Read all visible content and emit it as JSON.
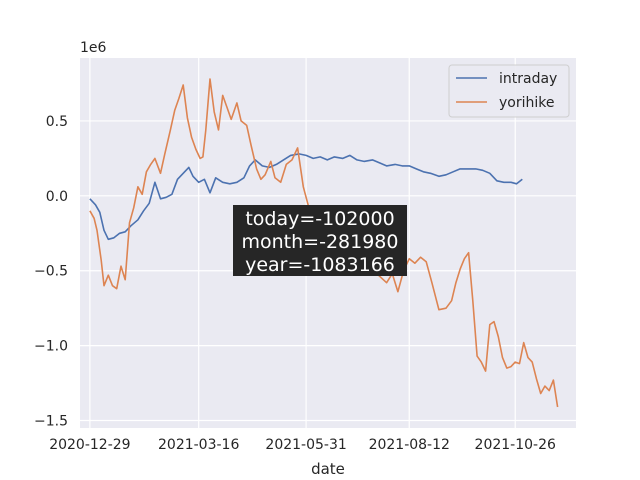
{
  "chart_data": {
    "type": "line",
    "xlabel": "date",
    "ylabel": "",
    "y_scale_label": "1e6",
    "xlim": [
      "2020-12-22",
      "2021-12-08"
    ],
    "ylim": [
      -1550000,
      920000
    ],
    "x_ticks": [
      "2020-12-29",
      "2021-03-16",
      "2021-05-31",
      "2021-08-12",
      "2021-10-26"
    ],
    "y_ticks": [
      {
        "value": 500000,
        "label": "0.5"
      },
      {
        "value": 0,
        "label": "0.0"
      },
      {
        "value": -500000,
        "label": "−0.5"
      },
      {
        "value": -1000000,
        "label": "−1.0"
      },
      {
        "value": -1500000,
        "label": "−1.5"
      }
    ],
    "grid": true,
    "legend_position": "top-right",
    "annotation": [
      "today=-102000",
      "month=-281980",
      "year=-1083166"
    ],
    "series": [
      {
        "name": "intraday",
        "color": "#4c72b0",
        "points": [
          [
            "2020-12-29",
            -20000
          ],
          [
            "2021-01-02",
            -60000
          ],
          [
            "2021-01-05",
            -110000
          ],
          [
            "2021-01-08",
            -230000
          ],
          [
            "2021-01-11",
            -290000
          ],
          [
            "2021-01-15",
            -280000
          ],
          [
            "2021-01-19",
            -250000
          ],
          [
            "2021-01-23",
            -240000
          ],
          [
            "2021-01-27",
            -200000
          ],
          [
            "2021-02-01",
            -160000
          ],
          [
            "2021-02-05",
            -100000
          ],
          [
            "2021-02-09",
            -50000
          ],
          [
            "2021-02-13",
            90000
          ],
          [
            "2021-02-17",
            -20000
          ],
          [
            "2021-02-21",
            -10000
          ],
          [
            "2021-02-25",
            10000
          ],
          [
            "2021-03-01",
            110000
          ],
          [
            "2021-03-05",
            150000
          ],
          [
            "2021-03-09",
            190000
          ],
          [
            "2021-03-12",
            130000
          ],
          [
            "2021-03-16",
            90000
          ],
          [
            "2021-03-20",
            110000
          ],
          [
            "2021-03-24",
            20000
          ],
          [
            "2021-03-28",
            120000
          ],
          [
            "2021-04-02",
            90000
          ],
          [
            "2021-04-07",
            80000
          ],
          [
            "2021-04-12",
            90000
          ],
          [
            "2021-04-17",
            120000
          ],
          [
            "2021-04-21",
            200000
          ],
          [
            "2021-04-25",
            240000
          ],
          [
            "2021-04-30",
            200000
          ],
          [
            "2021-05-05",
            190000
          ],
          [
            "2021-05-10",
            210000
          ],
          [
            "2021-05-15",
            240000
          ],
          [
            "2021-05-20",
            270000
          ],
          [
            "2021-05-26",
            280000
          ],
          [
            "2021-05-31",
            270000
          ],
          [
            "2021-06-05",
            250000
          ],
          [
            "2021-06-10",
            260000
          ],
          [
            "2021-06-15",
            240000
          ],
          [
            "2021-06-20",
            260000
          ],
          [
            "2021-06-26",
            250000
          ],
          [
            "2021-07-01",
            270000
          ],
          [
            "2021-07-06",
            240000
          ],
          [
            "2021-07-11",
            230000
          ],
          [
            "2021-07-17",
            240000
          ],
          [
            "2021-07-22",
            220000
          ],
          [
            "2021-07-27",
            200000
          ],
          [
            "2021-08-02",
            210000
          ],
          [
            "2021-08-07",
            200000
          ],
          [
            "2021-08-12",
            200000
          ],
          [
            "2021-08-17",
            180000
          ],
          [
            "2021-08-22",
            160000
          ],
          [
            "2021-08-27",
            150000
          ],
          [
            "2021-09-02",
            130000
          ],
          [
            "2021-09-07",
            140000
          ],
          [
            "2021-09-12",
            160000
          ],
          [
            "2021-09-17",
            180000
          ],
          [
            "2021-09-23",
            180000
          ],
          [
            "2021-09-28",
            180000
          ],
          [
            "2021-10-03",
            170000
          ],
          [
            "2021-10-08",
            150000
          ],
          [
            "2021-10-13",
            100000
          ],
          [
            "2021-10-18",
            90000
          ],
          [
            "2021-10-23",
            90000
          ],
          [
            "2021-10-27",
            80000
          ],
          [
            "2021-10-31",
            110000
          ]
        ]
      },
      {
        "name": "yorihike",
        "color": "#dd8452",
        "points": [
          [
            "2020-12-29",
            -100000
          ],
          [
            "2021-01-01",
            -150000
          ],
          [
            "2021-01-03",
            -230000
          ],
          [
            "2021-01-06",
            -430000
          ],
          [
            "2021-01-08",
            -600000
          ],
          [
            "2021-01-11",
            -530000
          ],
          [
            "2021-01-14",
            -600000
          ],
          [
            "2021-01-17",
            -620000
          ],
          [
            "2021-01-20",
            -470000
          ],
          [
            "2021-01-23",
            -560000
          ],
          [
            "2021-01-26",
            -180000
          ],
          [
            "2021-01-29",
            -80000
          ],
          [
            "2021-02-01",
            60000
          ],
          [
            "2021-02-04",
            10000
          ],
          [
            "2021-02-07",
            160000
          ],
          [
            "2021-02-10",
            210000
          ],
          [
            "2021-02-13",
            250000
          ],
          [
            "2021-02-17",
            150000
          ],
          [
            "2021-02-20",
            280000
          ],
          [
            "2021-02-24",
            440000
          ],
          [
            "2021-02-27",
            570000
          ],
          [
            "2021-03-02",
            650000
          ],
          [
            "2021-03-05",
            740000
          ],
          [
            "2021-03-08",
            520000
          ],
          [
            "2021-03-11",
            390000
          ],
          [
            "2021-03-14",
            310000
          ],
          [
            "2021-03-17",
            250000
          ],
          [
            "2021-03-19",
            260000
          ],
          [
            "2021-03-21",
            440000
          ],
          [
            "2021-03-24",
            780000
          ],
          [
            "2021-03-27",
            560000
          ],
          [
            "2021-03-30",
            440000
          ],
          [
            "2021-04-02",
            670000
          ],
          [
            "2021-04-05",
            590000
          ],
          [
            "2021-04-08",
            510000
          ],
          [
            "2021-04-12",
            620000
          ],
          [
            "2021-04-15",
            500000
          ],
          [
            "2021-04-19",
            470000
          ],
          [
            "2021-04-22",
            340000
          ],
          [
            "2021-04-26",
            180000
          ],
          [
            "2021-04-29",
            110000
          ],
          [
            "2021-05-02",
            140000
          ],
          [
            "2021-05-06",
            230000
          ],
          [
            "2021-05-09",
            120000
          ],
          [
            "2021-05-13",
            90000
          ],
          [
            "2021-05-17",
            210000
          ],
          [
            "2021-05-21",
            240000
          ],
          [
            "2021-05-25",
            320000
          ],
          [
            "2021-05-29",
            60000
          ],
          [
            "2021-06-02",
            -80000
          ],
          [
            "2021-06-08",
            -120000
          ],
          [
            "2021-06-15",
            -200000
          ],
          [
            "2021-06-22",
            -280000
          ],
          [
            "2021-06-29",
            -350000
          ],
          [
            "2021-07-06",
            -420000
          ],
          [
            "2021-07-13",
            -480000
          ],
          [
            "2021-07-20",
            -520000
          ],
          [
            "2021-07-27",
            -580000
          ],
          [
            "2021-07-31",
            -520000
          ],
          [
            "2021-08-04",
            -640000
          ],
          [
            "2021-08-08",
            -500000
          ],
          [
            "2021-08-12",
            -420000
          ],
          [
            "2021-08-16",
            -450000
          ],
          [
            "2021-08-20",
            -410000
          ],
          [
            "2021-08-24",
            -440000
          ],
          [
            "2021-08-28",
            -580000
          ],
          [
            "2021-09-02",
            -760000
          ],
          [
            "2021-09-07",
            -750000
          ],
          [
            "2021-09-11",
            -700000
          ],
          [
            "2021-09-14",
            -580000
          ],
          [
            "2021-09-17",
            -490000
          ],
          [
            "2021-09-20",
            -420000
          ],
          [
            "2021-09-23",
            -380000
          ],
          [
            "2021-09-26",
            -700000
          ],
          [
            "2021-09-29",
            -1070000
          ],
          [
            "2021-10-02",
            -1110000
          ],
          [
            "2021-10-05",
            -1170000
          ],
          [
            "2021-10-08",
            -860000
          ],
          [
            "2021-10-11",
            -840000
          ],
          [
            "2021-10-14",
            -940000
          ],
          [
            "2021-10-17",
            -1080000
          ],
          [
            "2021-10-20",
            -1150000
          ],
          [
            "2021-10-23",
            -1140000
          ],
          [
            "2021-10-26",
            -1110000
          ],
          [
            "2021-10-29",
            -1120000
          ],
          [
            "2021-11-01",
            -980000
          ],
          [
            "2021-11-04",
            -1080000
          ],
          [
            "2021-11-07",
            -1110000
          ],
          [
            "2021-11-10",
            -1220000
          ],
          [
            "2021-11-13",
            -1320000
          ],
          [
            "2021-11-16",
            -1270000
          ],
          [
            "2021-11-19",
            -1300000
          ],
          [
            "2021-11-22",
            -1230000
          ],
          [
            "2021-11-25",
            -1410000
          ]
        ]
      }
    ]
  }
}
